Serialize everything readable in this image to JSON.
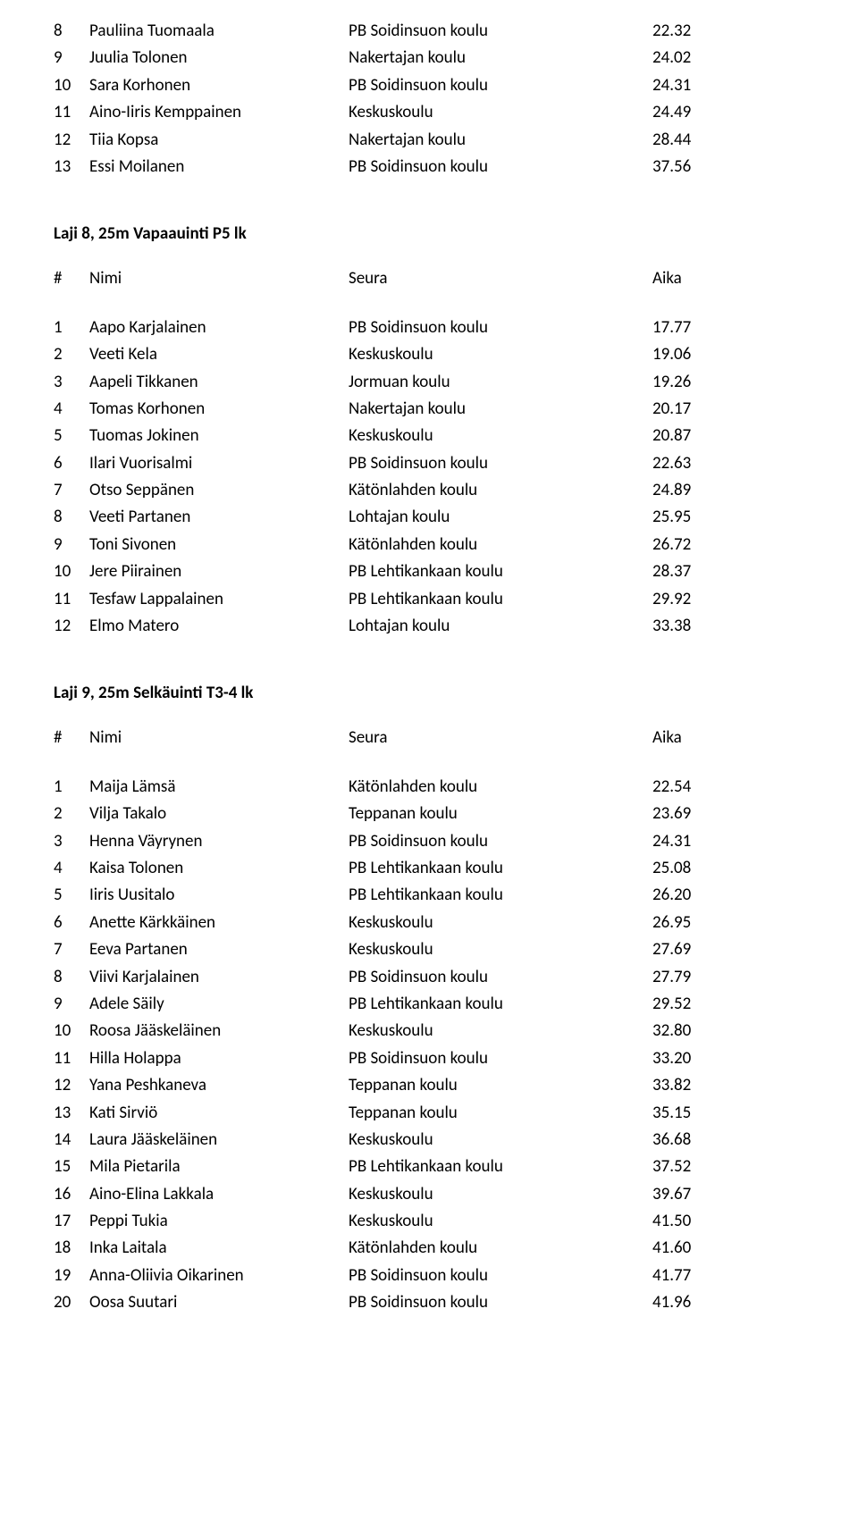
{
  "top_rows": [
    {
      "rank": "8",
      "name": "Pauliina Tuomaala",
      "club": "PB Soidinsuon koulu",
      "time": "22.32"
    },
    {
      "rank": "9",
      "name": "Juulia Tolonen",
      "club": "Nakertajan koulu",
      "time": "24.02"
    },
    {
      "rank": "10",
      "name": "Sara Korhonen",
      "club": "PB Soidinsuon koulu",
      "time": "24.31"
    },
    {
      "rank": "11",
      "name": "Aino-Iiris Kemppainen",
      "club": "Keskuskoulu",
      "time": "24.49"
    },
    {
      "rank": "12",
      "name": "Tiia Kopsa",
      "club": "Nakertajan koulu",
      "time": "28.44"
    },
    {
      "rank": "13",
      "name": "Essi Moilanen",
      "club": "PB Soidinsuon koulu",
      "time": "37.56"
    }
  ],
  "sections": [
    {
      "title": "Laji 8, 25m Vapaauinti P5 lk",
      "header": {
        "rank": "#",
        "name": "Nimi",
        "club": "Seura",
        "time": "Aika"
      },
      "rows": [
        {
          "rank": "1",
          "name": "Aapo Karjalainen",
          "club": "PB Soidinsuon koulu",
          "time": "17.77"
        },
        {
          "rank": "2",
          "name": "Veeti Kela",
          "club": "Keskuskoulu",
          "time": "19.06"
        },
        {
          "rank": "3",
          "name": "Aapeli Tikkanen",
          "club": "Jormuan koulu",
          "time": "19.26"
        },
        {
          "rank": "4",
          "name": "Tomas Korhonen",
          "club": "Nakertajan koulu",
          "time": "20.17"
        },
        {
          "rank": "5",
          "name": "Tuomas Jokinen",
          "club": "Keskuskoulu",
          "time": "20.87"
        },
        {
          "rank": "6",
          "name": "Ilari Vuorisalmi",
          "club": "PB Soidinsuon koulu",
          "time": "22.63"
        },
        {
          "rank": "7",
          "name": "Otso Seppänen",
          "club": "Kätönlahden koulu",
          "time": "24.89"
        },
        {
          "rank": "8",
          "name": "Veeti Partanen",
          "club": "Lohtajan koulu",
          "time": "25.95"
        },
        {
          "rank": "9",
          "name": "Toni Sivonen",
          "club": "Kätönlahden koulu",
          "time": "26.72"
        },
        {
          "rank": "10",
          "name": "Jere Piirainen",
          "club": "PB Lehtikankaan koulu",
          "time": "28.37"
        },
        {
          "rank": "11",
          "name": "Tesfaw Lappalainen",
          "club": "PB Lehtikankaan koulu",
          "time": "29.92"
        },
        {
          "rank": "12",
          "name": "Elmo Matero",
          "club": "Lohtajan koulu",
          "time": "33.38"
        }
      ]
    },
    {
      "title": "Laji 9, 25m Selkäuinti T3-4 lk",
      "header": {
        "rank": "#",
        "name": "Nimi",
        "club": "Seura",
        "time": "Aika"
      },
      "rows": [
        {
          "rank": "1",
          "name": "Maija Lämsä",
          "club": "Kätönlahden koulu",
          "time": "22.54"
        },
        {
          "rank": "2",
          "name": "Vilja Takalo",
          "club": "Teppanan koulu",
          "time": "23.69"
        },
        {
          "rank": "3",
          "name": "Henna Väyrynen",
          "club": "PB Soidinsuon koulu",
          "time": "24.31"
        },
        {
          "rank": "4",
          "name": "Kaisa Tolonen",
          "club": "PB Lehtikankaan koulu",
          "time": "25.08"
        },
        {
          "rank": "5",
          "name": "Iiris Uusitalo",
          "club": "PB Lehtikankaan koulu",
          "time": "26.20"
        },
        {
          "rank": "6",
          "name": "Anette Kärkkäinen",
          "club": "Keskuskoulu",
          "time": "26.95"
        },
        {
          "rank": "7",
          "name": "Eeva Partanen",
          "club": "Keskuskoulu",
          "time": "27.69"
        },
        {
          "rank": "8",
          "name": "Viivi Karjalainen",
          "club": "PB Soidinsuon koulu",
          "time": "27.79"
        },
        {
          "rank": "9",
          "name": "Adele Säily",
          "club": "PB Lehtikankaan koulu",
          "time": "29.52"
        },
        {
          "rank": "10",
          "name": "Roosa Jääskeläinen",
          "club": "Keskuskoulu",
          "time": "32.80"
        },
        {
          "rank": "11",
          "name": "Hilla Holappa",
          "club": "PB Soidinsuon koulu",
          "time": "33.20"
        },
        {
          "rank": "12",
          "name": "Yana Peshkaneva",
          "club": "Teppanan koulu",
          "time": "33.82"
        },
        {
          "rank": "13",
          "name": "Kati Sirviö",
          "club": "Teppanan koulu",
          "time": "35.15"
        },
        {
          "rank": "14",
          "name": "Laura Jääskeläinen",
          "club": "Keskuskoulu",
          "time": "36.68"
        },
        {
          "rank": "15",
          "name": "Mila Pietarila",
          "club": "PB Lehtikankaan koulu",
          "time": "37.52"
        },
        {
          "rank": "16",
          "name": "Aino-Elina Lakkala",
          "club": "Keskuskoulu",
          "time": "39.67"
        },
        {
          "rank": "17",
          "name": "Peppi Tukia",
          "club": "Keskuskoulu",
          "time": "41.50"
        },
        {
          "rank": "18",
          "name": "Inka Laitala",
          "club": "Kätönlahden koulu",
          "time": "41.60"
        },
        {
          "rank": "19",
          "name": "Anna-Oliivia Oikarinen",
          "club": "PB Soidinsuon koulu",
          "time": "41.77"
        },
        {
          "rank": "20",
          "name": "Oosa Suutari",
          "club": "PB Soidinsuon koulu",
          "time": "41.96"
        }
      ]
    }
  ]
}
